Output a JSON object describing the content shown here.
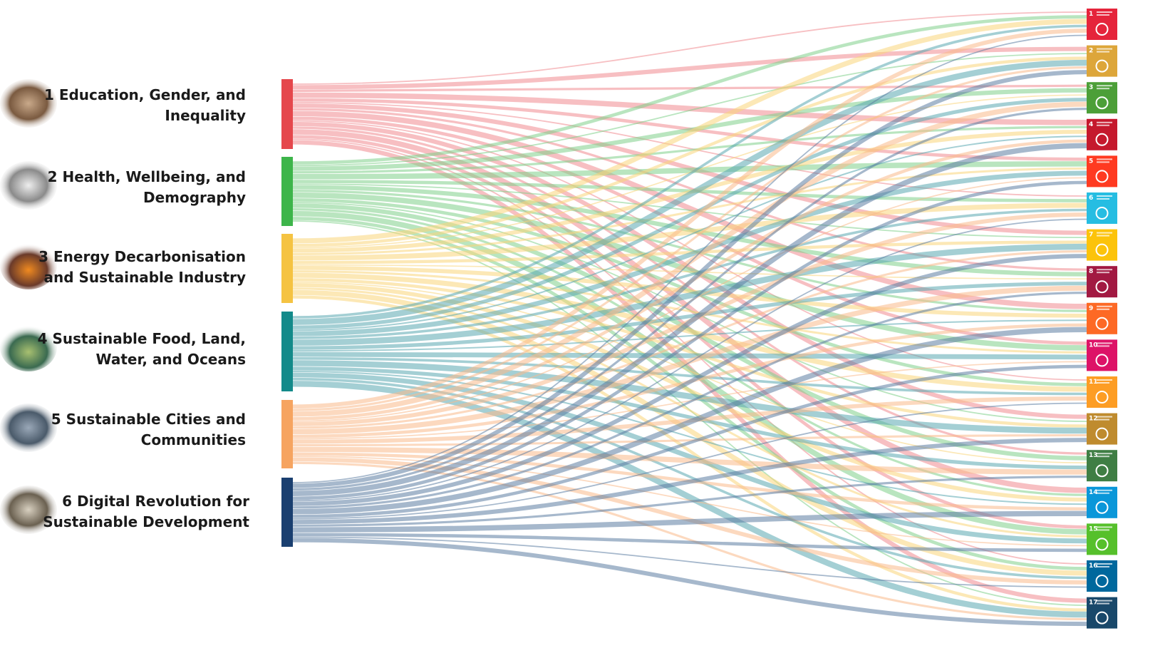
{
  "transformations": [
    {
      "label": [
        "1 Education, Gender, and",
        "Inequality"
      ]
    },
    {
      "label": [
        "2 Health, Wellbeing, and",
        "Demography"
      ]
    },
    {
      "label": [
        "3 Energy Decarbonisation",
        "and Sustainable Industry"
      ]
    },
    {
      "label": [
        "4 Sustainable Food, Land,",
        "Water, and Oceans"
      ]
    },
    {
      "label": [
        "5 Sustainable Cities and",
        "Communities"
      ]
    },
    {
      "label": [
        "6 Digital Revolution for",
        "Sustainable Development"
      ]
    }
  ],
  "sdgs": [
    {
      "number": 1
    },
    {
      "number": 2
    },
    {
      "number": 3
    },
    {
      "number": 4
    },
    {
      "number": 5
    },
    {
      "number": 6
    },
    {
      "number": 7
    },
    {
      "number": 8
    },
    {
      "number": 9
    },
    {
      "number": 10
    },
    {
      "number": 11
    },
    {
      "number": 12
    },
    {
      "number": 13
    },
    {
      "number": 14
    },
    {
      "number": 15
    },
    {
      "number": 16
    },
    {
      "number": 17
    }
  ]
}
